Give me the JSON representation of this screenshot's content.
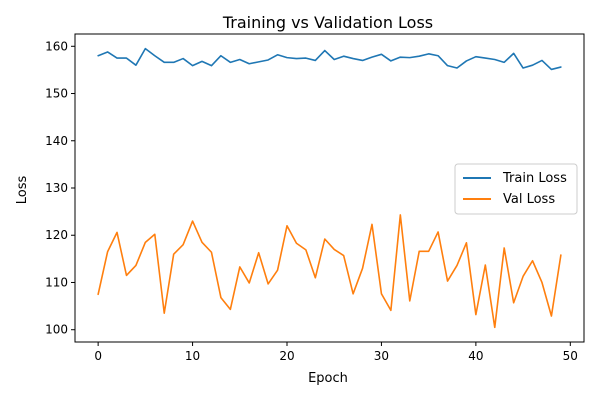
{
  "chart_data": {
    "type": "line",
    "title": "Training vs Validation Loss",
    "xlabel": "Epoch",
    "ylabel": "Loss",
    "xlim": [
      -2.45,
      51.45
    ],
    "ylim": [
      97.4,
      162.6
    ],
    "x_ticks": [
      0,
      10,
      20,
      30,
      40,
      50
    ],
    "y_ticks": [
      100,
      110,
      120,
      130,
      140,
      150,
      160
    ],
    "x": [
      0,
      1,
      2,
      3,
      4,
      5,
      6,
      7,
      8,
      9,
      10,
      11,
      12,
      13,
      14,
      15,
      16,
      17,
      18,
      19,
      20,
      21,
      22,
      23,
      24,
      25,
      26,
      27,
      28,
      29,
      30,
      31,
      32,
      33,
      34,
      35,
      36,
      37,
      38,
      39,
      40,
      41,
      42,
      43,
      44,
      45,
      46,
      47,
      48,
      49
    ],
    "series": [
      {
        "name": "Train Loss",
        "color": "#1f77b4",
        "values": [
          158.0,
          158.8,
          157.5,
          157.5,
          156.0,
          159.5,
          158.0,
          156.6,
          156.6,
          157.4,
          155.9,
          156.8,
          155.9,
          158.0,
          156.6,
          157.2,
          156.3,
          156.7,
          157.1,
          158.2,
          157.6,
          157.4,
          157.5,
          157.0,
          159.1,
          157.2,
          157.9,
          157.4,
          157.0,
          157.7,
          158.3,
          156.9,
          157.7,
          157.6,
          157.9,
          158.4,
          158.0,
          155.9,
          155.4,
          156.9,
          157.8,
          157.5,
          157.2,
          156.6,
          158.5,
          155.4,
          156.0,
          157.0,
          155.1,
          155.6
        ]
      },
      {
        "name": "Val Loss",
        "color": "#ff7f0e",
        "values": [
          107.5,
          116.5,
          120.6,
          111.5,
          113.6,
          118.5,
          120.2,
          103.5,
          116.0,
          118.0,
          123.0,
          118.5,
          116.4,
          106.8,
          104.3,
          113.3,
          109.9,
          116.3,
          109.7,
          112.6,
          122.0,
          118.3,
          116.9,
          111.0,
          119.2,
          117.0,
          115.7,
          107.6,
          113.0,
          122.3,
          107.6,
          104.1,
          124.3,
          106.1,
          116.6,
          116.6,
          120.7,
          110.3,
          113.6,
          118.4,
          103.2,
          113.7,
          100.5,
          117.3,
          105.7,
          111.3,
          114.6,
          110.0,
          102.9,
          115.8
        ]
      }
    ],
    "legend": {
      "position": "center-right"
    }
  }
}
